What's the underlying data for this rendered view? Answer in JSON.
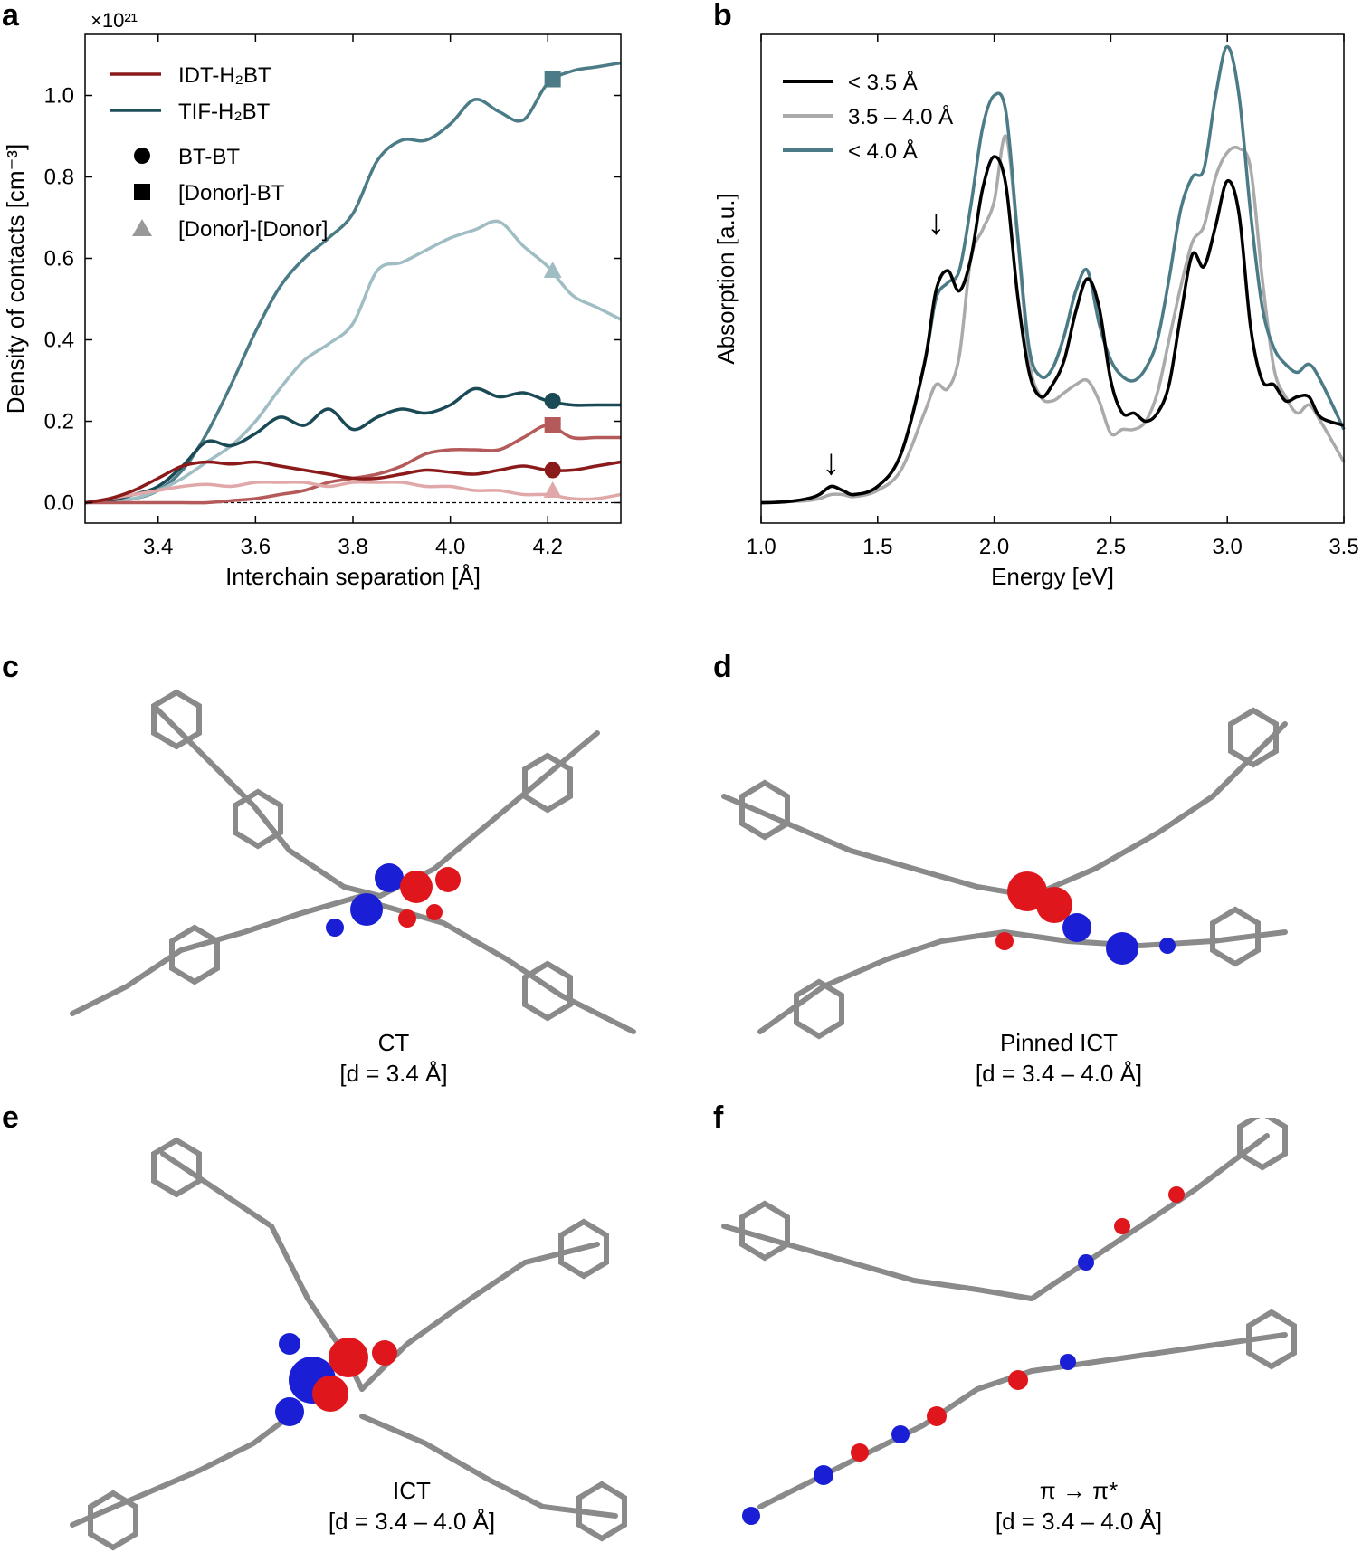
{
  "panels": {
    "a": "a",
    "b": "b",
    "c": "c",
    "d": "d",
    "e": "e",
    "f": "f"
  },
  "chart_data": [
    {
      "panel": "a",
      "type": "line",
      "xlabel": "Interchain separation [Å]",
      "ylabel": "Density of contacts [cm⁻³]",
      "multiplier": "×10²¹",
      "xlim": [
        3.25,
        4.35
      ],
      "ylim": [
        -0.05,
        1.15
      ],
      "xticks": [
        "3.4",
        "3.6",
        "3.8",
        "4.0",
        "4.2"
      ],
      "yticks": [
        "0.0",
        "0.2",
        "0.4",
        "0.6",
        "0.8",
        "1.0"
      ],
      "legend": {
        "lines": [
          {
            "label": "IDT-H₂BT",
            "color": "#8b1a1a"
          },
          {
            "label": "TIF-H₂BT",
            "color": "#1f4f5a"
          }
        ],
        "markers": [
          {
            "label": "BT-BT",
            "shape": "circle"
          },
          {
            "label": "[Donor]-BT",
            "shape": "square"
          },
          {
            "label": "[Donor]-[Donor]",
            "shape": "triangle"
          }
        ]
      },
      "series": [
        {
          "name": "TIF-H₂BT [Donor]-BT",
          "color": "#4b7b86",
          "x": [
            3.25,
            3.3,
            3.35,
            3.4,
            3.45,
            3.5,
            3.55,
            3.6,
            3.65,
            3.7,
            3.75,
            3.8,
            3.85,
            3.9,
            3.95,
            4.0,
            4.05,
            4.1,
            4.15,
            4.2,
            4.25,
            4.3,
            4.35
          ],
          "y": [
            0.0,
            0.005,
            0.01,
            0.03,
            0.08,
            0.17,
            0.29,
            0.42,
            0.53,
            0.6,
            0.65,
            0.71,
            0.84,
            0.89,
            0.89,
            0.93,
            0.99,
            0.96,
            0.94,
            1.03,
            1.06,
            1.07,
            1.08
          ],
          "marker": {
            "shape": "square",
            "x": 4.21,
            "y": 1.04
          }
        },
        {
          "name": "TIF-H₂BT [Donor]-[Donor]",
          "color": "#9fbdc3",
          "x": [
            3.25,
            3.3,
            3.35,
            3.4,
            3.45,
            3.5,
            3.55,
            3.6,
            3.65,
            3.7,
            3.75,
            3.8,
            3.85,
            3.9,
            3.95,
            4.0,
            4.05,
            4.1,
            4.15,
            4.2,
            4.25,
            4.3,
            4.35
          ],
          "y": [
            0.0,
            0.003,
            0.01,
            0.03,
            0.06,
            0.1,
            0.14,
            0.2,
            0.28,
            0.35,
            0.39,
            0.44,
            0.57,
            0.59,
            0.62,
            0.65,
            0.67,
            0.69,
            0.63,
            0.58,
            0.51,
            0.48,
            0.45
          ],
          "marker": {
            "shape": "triangle",
            "x": 4.21,
            "y": 0.57
          }
        },
        {
          "name": "TIF-H₂BT BT-BT",
          "color": "#1a4a55",
          "x": [
            3.25,
            3.3,
            3.35,
            3.4,
            3.45,
            3.5,
            3.55,
            3.6,
            3.65,
            3.7,
            3.75,
            3.8,
            3.85,
            3.9,
            3.95,
            4.0,
            4.05,
            4.1,
            4.15,
            4.2,
            4.25,
            4.3,
            4.35
          ],
          "y": [
            0.0,
            0.005,
            0.02,
            0.04,
            0.09,
            0.15,
            0.14,
            0.17,
            0.21,
            0.19,
            0.23,
            0.18,
            0.21,
            0.23,
            0.22,
            0.24,
            0.28,
            0.26,
            0.27,
            0.25,
            0.24,
            0.24,
            0.24
          ],
          "marker": {
            "shape": "circle",
            "x": 4.21,
            "y": 0.25
          }
        },
        {
          "name": "IDT-H₂BT [Donor]-BT",
          "color": "#b55a5a",
          "x": [
            3.25,
            3.3,
            3.35,
            3.4,
            3.45,
            3.5,
            3.55,
            3.6,
            3.65,
            3.7,
            3.75,
            3.8,
            3.85,
            3.9,
            3.95,
            4.0,
            4.05,
            4.1,
            4.15,
            4.2,
            4.25,
            4.3,
            4.35
          ],
          "y": [
            0.0,
            0.0,
            0.0,
            0.0,
            0.0,
            0.0,
            0.005,
            0.01,
            0.02,
            0.03,
            0.05,
            0.06,
            0.07,
            0.09,
            0.12,
            0.13,
            0.13,
            0.13,
            0.16,
            0.19,
            0.16,
            0.16,
            0.16
          ],
          "marker": {
            "shape": "square",
            "x": 4.21,
            "y": 0.19
          }
        },
        {
          "name": "IDT-H₂BT [Donor]-[Donor]",
          "color": "#e0a8a8",
          "x": [
            3.25,
            3.3,
            3.35,
            3.4,
            3.45,
            3.5,
            3.55,
            3.6,
            3.65,
            3.7,
            3.75,
            3.8,
            3.85,
            3.9,
            3.95,
            4.0,
            4.05,
            4.1,
            4.15,
            4.2,
            4.25,
            4.3,
            4.35
          ],
          "y": [
            0.0,
            0.01,
            0.02,
            0.03,
            0.04,
            0.045,
            0.04,
            0.05,
            0.05,
            0.05,
            0.04,
            0.05,
            0.05,
            0.05,
            0.04,
            0.04,
            0.03,
            0.03,
            0.02,
            0.02,
            0.01,
            0.01,
            0.02
          ],
          "marker": {
            "shape": "triangle",
            "x": 4.21,
            "y": 0.03
          }
        },
        {
          "name": "IDT-H₂BT BT-BT",
          "color": "#8b1a1a",
          "x": [
            3.25,
            3.3,
            3.35,
            3.4,
            3.45,
            3.5,
            3.55,
            3.6,
            3.65,
            3.7,
            3.75,
            3.8,
            3.85,
            3.9,
            3.95,
            4.0,
            4.05,
            4.1,
            4.15,
            4.2,
            4.25,
            4.3,
            4.35
          ],
          "y": [
            0.0,
            0.01,
            0.03,
            0.06,
            0.09,
            0.1,
            0.095,
            0.1,
            0.09,
            0.08,
            0.07,
            0.06,
            0.06,
            0.07,
            0.08,
            0.075,
            0.07,
            0.08,
            0.09,
            0.08,
            0.08,
            0.09,
            0.1
          ],
          "marker": {
            "shape": "circle",
            "x": 4.21,
            "y": 0.08
          }
        }
      ],
      "reference_line": {
        "y": 0.0,
        "style": "dashed"
      }
    },
    {
      "panel": "b",
      "type": "line",
      "xlabel": "Energy [eV]",
      "ylabel": "Absorption [a.u.]",
      "xlim": [
        1.0,
        3.5
      ],
      "ylim": [
        -0.05,
        1.15
      ],
      "xticks": [
        "1.0",
        "1.5",
        "2.0",
        "2.5",
        "3.0",
        "3.5"
      ],
      "legend": [
        {
          "label": "< 3.5 Å",
          "color": "#000000"
        },
        {
          "label": "3.5 – 4.0 Å",
          "color": "#aaaaaa"
        },
        {
          "label": "< 4.0 Å",
          "color": "#4b7b86"
        }
      ],
      "annotations": [
        {
          "text": "↓",
          "x": 1.3,
          "y": 0.07
        },
        {
          "text": "↓",
          "x": 1.75,
          "y": 0.66
        }
      ],
      "series": [
        {
          "name": "< 3.5 Å",
          "color": "#000000",
          "x": [
            1.0,
            1.1,
            1.2,
            1.25,
            1.3,
            1.35,
            1.4,
            1.5,
            1.6,
            1.7,
            1.75,
            1.8,
            1.85,
            1.9,
            1.95,
            2.0,
            2.05,
            2.1,
            2.15,
            2.2,
            2.25,
            2.3,
            2.35,
            2.4,
            2.45,
            2.5,
            2.55,
            2.6,
            2.65,
            2.7,
            2.75,
            2.8,
            2.85,
            2.9,
            2.95,
            3.0,
            3.05,
            3.1,
            3.15,
            3.2,
            3.25,
            3.3,
            3.35,
            3.4,
            3.5
          ],
          "y": [
            0.0,
            0.002,
            0.01,
            0.02,
            0.04,
            0.03,
            0.02,
            0.04,
            0.12,
            0.34,
            0.52,
            0.57,
            0.52,
            0.6,
            0.77,
            0.85,
            0.78,
            0.51,
            0.32,
            0.26,
            0.29,
            0.35,
            0.47,
            0.55,
            0.48,
            0.3,
            0.22,
            0.22,
            0.2,
            0.22,
            0.29,
            0.46,
            0.61,
            0.58,
            0.68,
            0.79,
            0.71,
            0.43,
            0.3,
            0.29,
            0.25,
            0.26,
            0.26,
            0.21,
            0.19
          ]
        },
        {
          "name": "3.5 – 4.0 Å",
          "color": "#aaaaaa",
          "x": [
            1.0,
            1.1,
            1.2,
            1.25,
            1.3,
            1.35,
            1.4,
            1.5,
            1.6,
            1.7,
            1.75,
            1.8,
            1.85,
            1.9,
            1.95,
            2.0,
            2.05,
            2.1,
            2.15,
            2.2,
            2.25,
            2.3,
            2.35,
            2.4,
            2.45,
            2.5,
            2.55,
            2.6,
            2.65,
            2.7,
            2.75,
            2.8,
            2.85,
            2.9,
            2.95,
            3.0,
            3.05,
            3.1,
            3.15,
            3.2,
            3.25,
            3.3,
            3.35,
            3.4,
            3.5
          ],
          "y": [
            0.0,
            0.002,
            0.005,
            0.01,
            0.02,
            0.02,
            0.015,
            0.03,
            0.08,
            0.22,
            0.29,
            0.28,
            0.36,
            0.6,
            0.67,
            0.74,
            0.9,
            0.65,
            0.35,
            0.26,
            0.25,
            0.27,
            0.29,
            0.3,
            0.25,
            0.17,
            0.18,
            0.18,
            0.2,
            0.27,
            0.4,
            0.53,
            0.64,
            0.68,
            0.8,
            0.86,
            0.87,
            0.82,
            0.55,
            0.33,
            0.26,
            0.22,
            0.24,
            0.2,
            0.1
          ]
        },
        {
          "name": "< 4.0 Å",
          "color": "#4b7b86",
          "x": [
            1.0,
            1.1,
            1.2,
            1.25,
            1.3,
            1.35,
            1.4,
            1.5,
            1.6,
            1.7,
            1.75,
            1.8,
            1.85,
            1.9,
            1.95,
            2.0,
            2.05,
            2.1,
            2.15,
            2.2,
            2.25,
            2.3,
            2.35,
            2.4,
            2.45,
            2.5,
            2.55,
            2.6,
            2.65,
            2.7,
            2.75,
            2.8,
            2.85,
            2.9,
            2.95,
            3.0,
            3.05,
            3.1,
            3.15,
            3.2,
            3.25,
            3.3,
            3.35,
            3.4,
            3.5
          ],
          "y": [
            0.0,
            0.002,
            0.01,
            0.02,
            0.04,
            0.03,
            0.02,
            0.04,
            0.12,
            0.34,
            0.5,
            0.54,
            0.57,
            0.73,
            0.92,
            1.0,
            0.96,
            0.66,
            0.38,
            0.31,
            0.33,
            0.41,
            0.52,
            0.57,
            0.44,
            0.35,
            0.31,
            0.3,
            0.33,
            0.4,
            0.55,
            0.72,
            0.8,
            0.82,
            1.0,
            1.12,
            1.0,
            0.71,
            0.48,
            0.38,
            0.34,
            0.32,
            0.34,
            0.3,
            0.18
          ]
        }
      ]
    }
  ],
  "captions": {
    "c": {
      "line1": "CT",
      "line2": "[d = 3.4 Å]"
    },
    "d": {
      "line1": "Pinned ICT",
      "line2": "[d = 3.4 – 4.0 Å]"
    },
    "e": {
      "line1": "ICT",
      "line2": "[d = 3.4 – 4.0 Å]"
    },
    "f": {
      "line1": "π → π*",
      "line2": "[d = 3.4 – 4.0 Å]"
    }
  },
  "colors": {
    "orbital_red": "#e0161d",
    "orbital_blue": "#1a1fd6",
    "bond_gray": "#8a8a8a",
    "sulfur": "#e8e85a"
  }
}
